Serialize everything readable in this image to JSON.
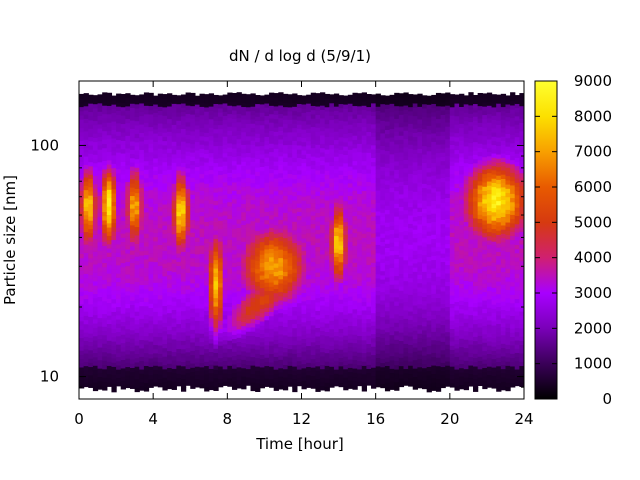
{
  "chart_data": {
    "type": "heatmap",
    "title": "dN / d log d (5/9/1)",
    "xlabel": "Time [hour]",
    "ylabel": "Particle size [nm]",
    "x_range": [
      0,
      24
    ],
    "x_ticks": [
      0,
      4,
      8,
      12,
      16,
      20,
      24
    ],
    "y_scale": "log",
    "y_range": [
      8,
      190
    ],
    "y_ticks": [
      10,
      100
    ],
    "colorbar": {
      "range": [
        0,
        9000
      ],
      "ticks": [
        0,
        1000,
        2000,
        3000,
        4000,
        5000,
        6000,
        7000,
        8000,
        9000
      ],
      "palette": [
        "#000000",
        "#3a0058",
        "#7a00b8",
        "#a800ff",
        "#d02070",
        "#d63a10",
        "#e85a00",
        "#f8a000",
        "#fce000",
        "#ffff30"
      ]
    },
    "features": [
      {
        "time_hour": 0.5,
        "size_nm": 55,
        "value": 6500
      },
      {
        "time_hour": 1.6,
        "size_nm": 55,
        "value": 7300
      },
      {
        "time_hour": 3.0,
        "size_nm": 55,
        "value": 6000
      },
      {
        "time_hour": 5.5,
        "size_nm": 52,
        "value": 6800
      },
      {
        "time_hour": 7.4,
        "size_nm": 25,
        "value": 6200
      },
      {
        "time_hour": 10.5,
        "size_nm": 30,
        "value": 5800
      },
      {
        "time_hour": 14.0,
        "size_nm": 38,
        "value": 6500
      },
      {
        "time_hour": 22.5,
        "size_nm": 58,
        "value": 7200
      }
    ],
    "grid": false,
    "legend": "colorbar-right"
  }
}
